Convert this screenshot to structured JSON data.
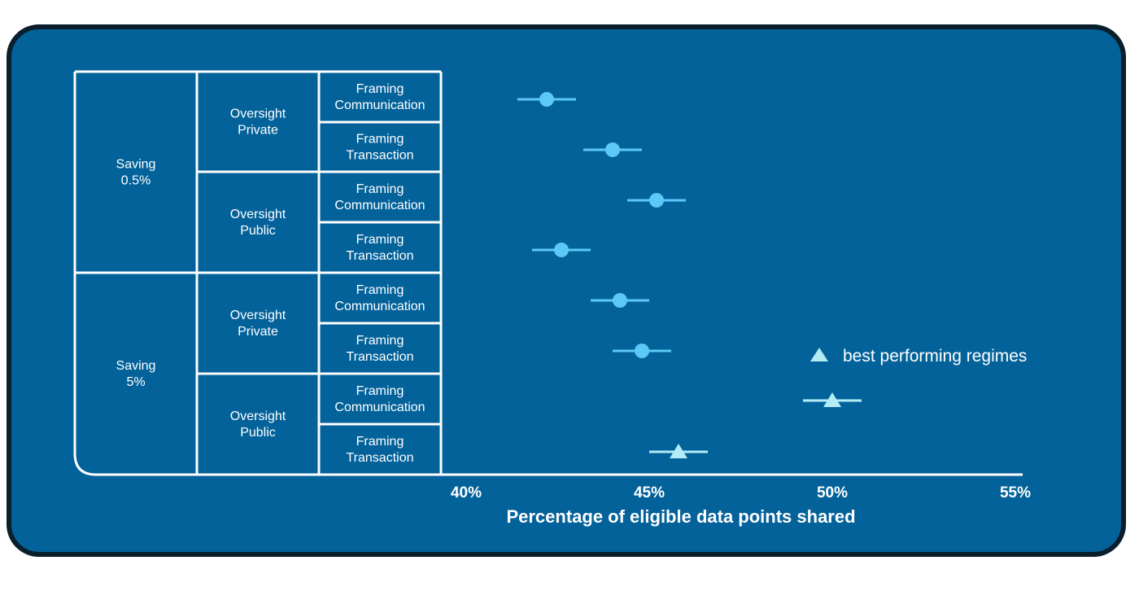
{
  "chart_data": {
    "type": "scatter",
    "subtype": "dot-and-whisker",
    "xlabel": "Percentage of eligible data points shared",
    "xlim": [
      40,
      55
    ],
    "xticks": [
      "40%",
      "45%",
      "50%",
      "55%"
    ],
    "xtick_values": [
      40,
      45,
      50,
      55
    ],
    "groups": [
      {
        "label_lines": [
          "Saving",
          "0.5%"
        ],
        "subgroups": [
          {
            "label_lines": [
              "Oversight",
              "Private"
            ],
            "rows": [
              {
                "label_lines": [
                  "Framing",
                  "Communication"
                ],
                "value": 42.2,
                "low": 41.4,
                "high": 43.0,
                "marker": "circle"
              },
              {
                "label_lines": [
                  "Framing",
                  "Transaction"
                ],
                "value": 44.0,
                "low": 43.2,
                "high": 44.8,
                "marker": "circle"
              }
            ]
          },
          {
            "label_lines": [
              "Oversight",
              "Public"
            ],
            "rows": [
              {
                "label_lines": [
                  "Framing",
                  "Communication"
                ],
                "value": 45.2,
                "low": 44.4,
                "high": 46.0,
                "marker": "circle"
              },
              {
                "label_lines": [
                  "Framing",
                  "Transaction"
                ],
                "value": 42.6,
                "low": 41.8,
                "high": 43.4,
                "marker": "circle"
              }
            ]
          }
        ]
      },
      {
        "label_lines": [
          "Saving",
          "5%"
        ],
        "subgroups": [
          {
            "label_lines": [
              "Oversight",
              "Private"
            ],
            "rows": [
              {
                "label_lines": [
                  "Framing",
                  "Communication"
                ],
                "value": 44.2,
                "low": 43.4,
                "high": 45.0,
                "marker": "circle"
              },
              {
                "label_lines": [
                  "Framing",
                  "Transaction"
                ],
                "value": 44.8,
                "low": 44.0,
                "high": 45.6,
                "marker": "circle"
              }
            ]
          },
          {
            "label_lines": [
              "Oversight",
              "Public"
            ],
            "rows": [
              {
                "label_lines": [
                  "Framing",
                  "Communication"
                ],
                "value": 50.0,
                "low": 49.2,
                "high": 50.8,
                "marker": "triangle"
              },
              {
                "label_lines": [
                  "Framing",
                  "Transaction"
                ],
                "value": 45.8,
                "low": 45.0,
                "high": 46.6,
                "marker": "triangle"
              }
            ]
          }
        ]
      }
    ],
    "legend": {
      "label": "best performing regimes",
      "marker": "triangle",
      "placement": "right"
    },
    "colors": {
      "background": "#03629a",
      "frame": "#0a1e2c",
      "circle": "#5cc8f5",
      "triangle": "#b3ecf5",
      "lines": "#ffffff"
    }
  }
}
